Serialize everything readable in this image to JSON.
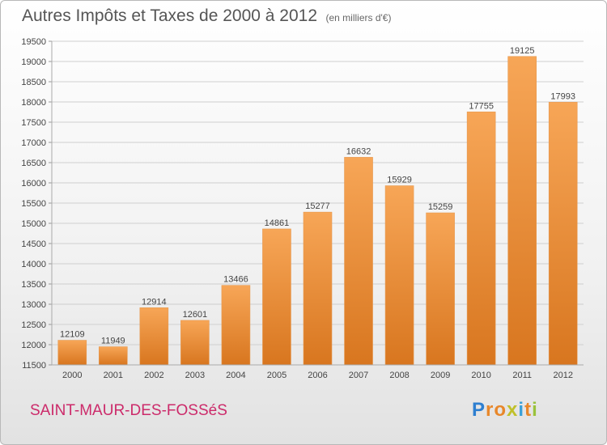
{
  "title": "Autres Impôts et Taxes de 2000 à 2012",
  "subtitle": "(en milliers d'€)",
  "city": "SAINT-MAUR-DES-FOSSéS",
  "logo": {
    "text": "Proxiti",
    "letter_colors": [
      "#2e7fd0",
      "#e8872a",
      "#e8872a",
      "#c0c02a",
      "#3aa0d8",
      "#e8872a",
      "#9ac23c"
    ]
  },
  "colors": {
    "bar_light": "#f7a657",
    "bar_dark": "#d8761f",
    "grid": "#cfcfcf",
    "title": "#555555",
    "city": "#cc2a6a"
  },
  "chart_data": {
    "type": "bar",
    "categories": [
      "2000",
      "2001",
      "2002",
      "2003",
      "2004",
      "2005",
      "2006",
      "2007",
      "2008",
      "2009",
      "2010",
      "2011",
      "2012"
    ],
    "values": [
      12109,
      11949,
      12914,
      12601,
      13466,
      14861,
      15277,
      16632,
      15929,
      15259,
      17755,
      19125,
      17993
    ],
    "ylim": [
      11500,
      19500
    ],
    "yticks": [
      11500,
      12000,
      12500,
      13000,
      13500,
      14000,
      14500,
      15000,
      15500,
      16000,
      16500,
      17000,
      17500,
      18000,
      18500,
      19000,
      19500
    ],
    "grid": true,
    "title": "Autres Impôts et Taxes de 2000 à 2012",
    "xlabel": "",
    "ylabel": ""
  }
}
